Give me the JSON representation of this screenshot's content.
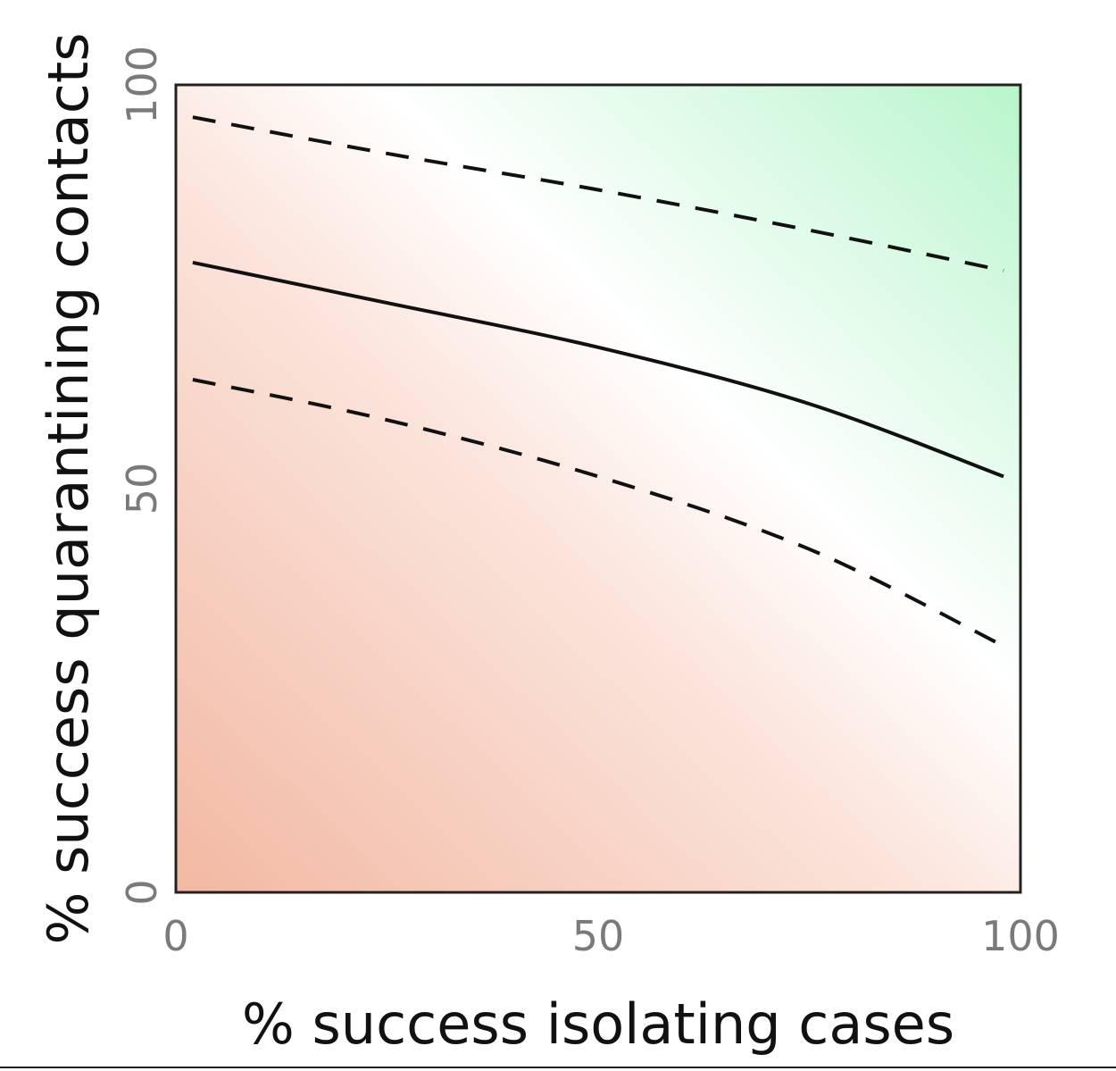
{
  "chart_data": {
    "type": "heatmap",
    "title": "",
    "xlabel": "% success isolating cases",
    "ylabel": "% success quarantining contacts",
    "xlim": [
      0,
      100
    ],
    "ylim": [
      0,
      100
    ],
    "x_ticks": [
      "0",
      "50",
      "100"
    ],
    "y_ticks": [
      "0",
      "50",
      "100"
    ],
    "grid": false,
    "legend": "none",
    "colors": {
      "low": "#f2b8a2",
      "mid": "#ffffff",
      "high": "#b8f5cc",
      "line": "#111111",
      "frame": "#222222"
    },
    "contours": [
      {
        "style": "dashed",
        "x": [
          2,
          25,
          50,
          75,
          98
        ],
        "y": [
          96,
          91.5,
          87,
          82,
          77
        ]
      },
      {
        "style": "solid",
        "x": [
          2,
          25,
          50,
          75,
          98
        ],
        "y": [
          78,
          73,
          67.5,
          60.5,
          51.5
        ]
      },
      {
        "style": "dashed",
        "x": [
          2,
          25,
          50,
          75,
          98
        ],
        "y": [
          63.5,
          58.5,
          51.5,
          42.5,
          30.5
        ]
      }
    ]
  }
}
